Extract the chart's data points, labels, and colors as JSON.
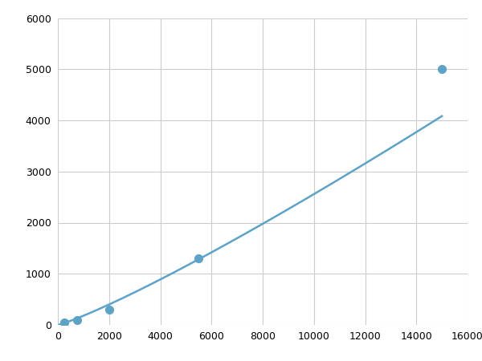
{
  "x_points": [
    250,
    750,
    2000,
    5500,
    15000
  ],
  "y_points": [
    50,
    100,
    300,
    1300,
    5000
  ],
  "line_color": "#5ba3c9",
  "marker_color": "#5ba3c9",
  "marker_size": 7,
  "line_width": 1.8,
  "xlim": [
    0,
    16000
  ],
  "ylim": [
    0,
    6000
  ],
  "xticks": [
    0,
    2000,
    4000,
    6000,
    8000,
    10000,
    12000,
    14000,
    16000
  ],
  "yticks": [
    0,
    1000,
    2000,
    3000,
    4000,
    5000,
    6000
  ],
  "grid_color": "#cccccc",
  "background_color": "#ffffff",
  "figsize": [
    6.0,
    4.5
  ],
  "dpi": 100,
  "curve_x_start": 100,
  "curve_x_end": 15000,
  "power_law_a": 0.52,
  "power_law_b": 1.52
}
